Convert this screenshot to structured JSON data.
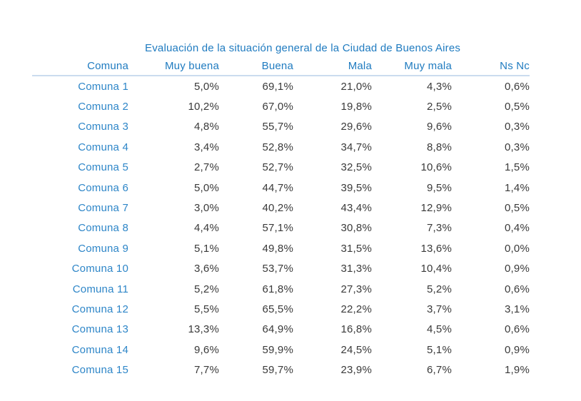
{
  "page": {
    "background": "#ffffff"
  },
  "table": {
    "title": "Evaluación de la situación general de la Ciudad de Buenos Aires",
    "columns": [
      "Comuna",
      "Muy buena",
      "Buena",
      "Mala",
      "Muy mala",
      "Ns Nc"
    ],
    "rows": [
      {
        "label": "Comuna 1",
        "values": [
          "5,0%",
          "69,1%",
          "21,0%",
          "4,3%",
          "0,6%"
        ]
      },
      {
        "label": "Comuna 2",
        "values": [
          "10,2%",
          "67,0%",
          "19,8%",
          "2,5%",
          "0,5%"
        ]
      },
      {
        "label": "Comuna 3",
        "values": [
          "4,8%",
          "55,7%",
          "29,6%",
          "9,6%",
          "0,3%"
        ]
      },
      {
        "label": "Comuna 4",
        "values": [
          "3,4%",
          "52,8%",
          "34,7%",
          "8,8%",
          "0,3%"
        ]
      },
      {
        "label": "Comuna 5",
        "values": [
          "2,7%",
          "52,7%",
          "32,5%",
          "10,6%",
          "1,5%"
        ]
      },
      {
        "label": "Comuna 6",
        "values": [
          "5,0%",
          "44,7%",
          "39,5%",
          "9,5%",
          "1,4%"
        ]
      },
      {
        "label": "Comuna 7",
        "values": [
          "3,0%",
          "40,2%",
          "43,4%",
          "12,9%",
          "0,5%"
        ]
      },
      {
        "label": "Comuna 8",
        "values": [
          "4,4%",
          "57,1%",
          "30,8%",
          "7,3%",
          "0,4%"
        ]
      },
      {
        "label": "Comuna 9",
        "values": [
          "5,1%",
          "49,8%",
          "31,5%",
          "13,6%",
          "0,0%"
        ]
      },
      {
        "label": "Comuna 10",
        "values": [
          "3,6%",
          "53,7%",
          "31,3%",
          "10,4%",
          "0,9%"
        ]
      },
      {
        "label": "Comuna 11",
        "values": [
          "5,2%",
          "61,8%",
          "27,3%",
          "5,2%",
          "0,6%"
        ]
      },
      {
        "label": "Comuna 12",
        "values": [
          "5,5%",
          "65,5%",
          "22,2%",
          "3,7%",
          "3,1%"
        ]
      },
      {
        "label": "Comuna 13",
        "values": [
          "13,3%",
          "64,9%",
          "16,8%",
          "4,5%",
          "0,6%"
        ]
      },
      {
        "label": "Comuna 14",
        "values": [
          "9,6%",
          "59,9%",
          "24,5%",
          "5,1%",
          "0,9%"
        ]
      },
      {
        "label": "Comuna 15",
        "values": [
          "7,7%",
          "59,7%",
          "23,9%",
          "6,7%",
          "1,9%"
        ]
      }
    ],
    "colors": {
      "header_blue": "#1f7bc0",
      "label_blue": "#2e86c8",
      "value_gray": "#3a3a3a",
      "divider_light_blue": "#cbdcef"
    }
  },
  "chart_data": {
    "type": "table",
    "title": "Evaluación de la situación general de la Ciudad de Buenos Aires",
    "categories": [
      "Comuna 1",
      "Comuna 2",
      "Comuna 3",
      "Comuna 4",
      "Comuna 5",
      "Comuna 6",
      "Comuna 7",
      "Comuna 8",
      "Comuna 9",
      "Comuna 10",
      "Comuna 11",
      "Comuna 12",
      "Comuna 13",
      "Comuna 14",
      "Comuna 15"
    ],
    "series": [
      {
        "name": "Muy buena",
        "values": [
          5.0,
          10.2,
          4.8,
          3.4,
          2.7,
          5.0,
          3.0,
          4.4,
          5.1,
          3.6,
          5.2,
          5.5,
          13.3,
          9.6,
          7.7
        ]
      },
      {
        "name": "Buena",
        "values": [
          69.1,
          67.0,
          55.7,
          52.8,
          52.7,
          44.7,
          40.2,
          57.1,
          49.8,
          53.7,
          61.8,
          65.5,
          64.9,
          59.9,
          59.7
        ]
      },
      {
        "name": "Mala",
        "values": [
          21.0,
          19.8,
          29.6,
          34.7,
          32.5,
          39.5,
          43.4,
          30.8,
          31.5,
          31.3,
          27.3,
          22.2,
          16.8,
          24.5,
          23.9
        ]
      },
      {
        "name": "Muy mala",
        "values": [
          4.3,
          2.5,
          9.6,
          8.8,
          10.6,
          9.5,
          12.9,
          7.3,
          13.6,
          10.4,
          5.2,
          3.7,
          4.5,
          5.1,
          6.7
        ]
      },
      {
        "name": "Ns Nc",
        "values": [
          0.6,
          0.5,
          0.3,
          0.3,
          1.5,
          1.4,
          0.5,
          0.4,
          0.0,
          0.9,
          0.6,
          3.1,
          0.6,
          0.9,
          1.9
        ]
      }
    ],
    "units": "percent",
    "notes": "values shown with comma decimal separator and % suffix"
  }
}
